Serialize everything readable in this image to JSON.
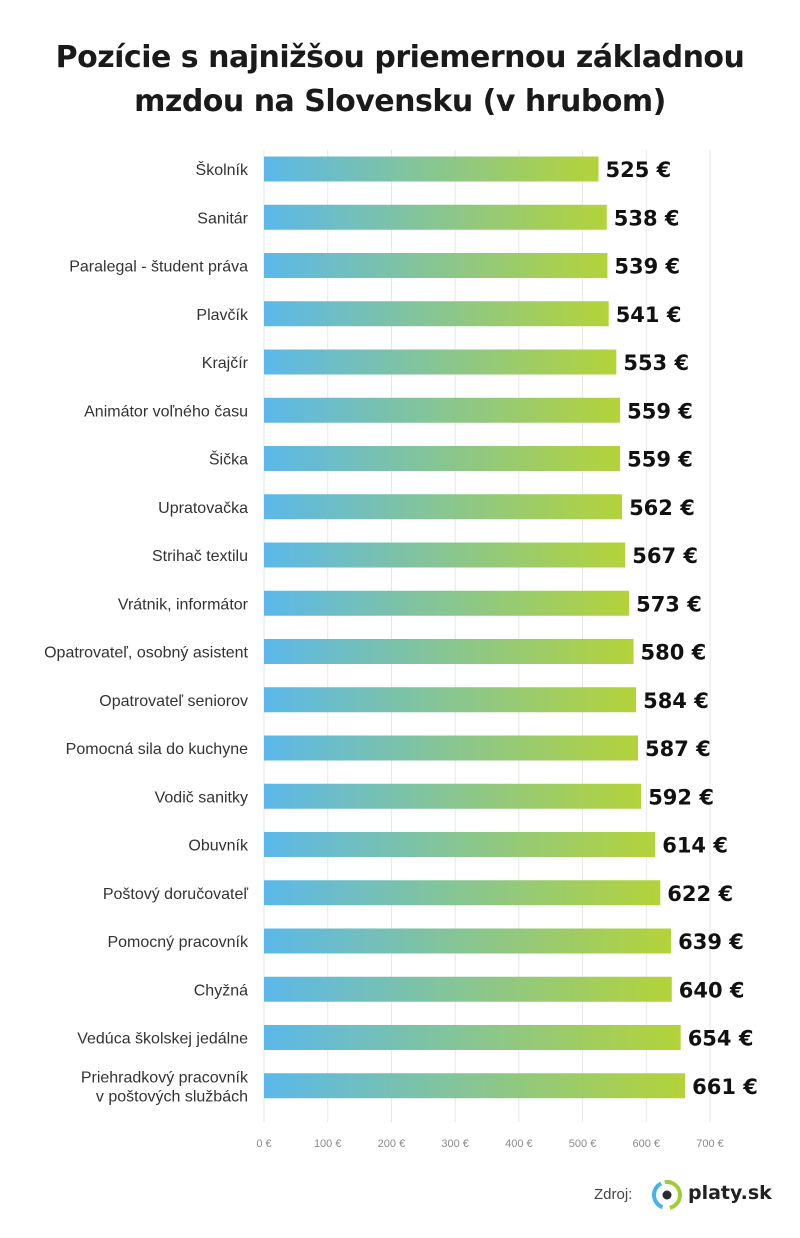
{
  "chart_data": {
    "type": "bar",
    "orientation": "horizontal",
    "title": "Pozície s najnižšou priemernou základnou mzdou na Slovensku (v hrubom)",
    "title_lines": [
      "Pozície s najnižšou priemernou základnou",
      "mzdou na Slovensku (v hrubom)"
    ],
    "categories": [
      "Školník",
      "Sanitár",
      "Paralegal - študent práva",
      "Plavčík",
      "Krajčír",
      "Animátor voľného času",
      "Šička",
      "Upratovačka",
      "Strihač textilu",
      "Vrátnik, informátor",
      "Opatrovateľ, osobný asistent",
      "Opatrovateľ seniorov",
      "Pomocná sila do kuchyne",
      "Vodič sanitky",
      "Obuvník",
      "Poštový doručovateľ",
      "Pomocný pracovník",
      "Chyžná",
      "Vedúca školskej jedálne",
      "Priehradkový pracovník v poštových službách"
    ],
    "category_lines": {
      "19": [
        "Priehradkový pracovník",
        "v poštových službách"
      ]
    },
    "values": [
      525,
      538,
      539,
      541,
      553,
      559,
      559,
      562,
      567,
      573,
      580,
      584,
      587,
      592,
      614,
      622,
      639,
      640,
      654,
      661
    ],
    "value_labels": [
      "525 €",
      "538 €",
      "539 €",
      "541 €",
      "553 €",
      "559 €",
      "559 €",
      "562 €",
      "567 €",
      "573 €",
      "580 €",
      "584 €",
      "587 €",
      "592 €",
      "614 €",
      "622 €",
      "639 €",
      "640 €",
      "654 €",
      "661 €"
    ],
    "xticks": [
      0,
      100,
      200,
      300,
      400,
      500,
      600,
      700
    ],
    "xtick_labels": [
      "0 €",
      "100 €",
      "200 €",
      "300 €",
      "400 €",
      "500 €",
      "600 €",
      "700 €"
    ],
    "xlim": [
      0,
      700
    ],
    "grid": "vertical",
    "legend": "none",
    "colors": {
      "bar_start": "#5bb8ea",
      "bar_end": "#b4d339",
      "grid": "#e6e6e6"
    }
  },
  "source": {
    "label": "Zdroj:",
    "brand": "platy.sk",
    "logo_colors": {
      "green": "#9fcc3b",
      "blue": "#45b3e6",
      "dark": "#2b2b2b"
    }
  }
}
